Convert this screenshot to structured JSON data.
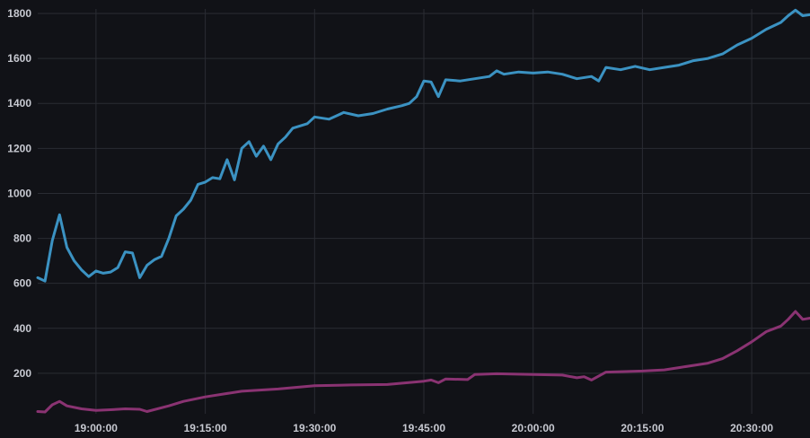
{
  "chart_data": {
    "type": "line",
    "x_start": "18:52:00",
    "x_end": "20:38:00",
    "xticks": [
      "19:00:00",
      "19:15:00",
      "19:30:00",
      "19:45:00",
      "20:00:00",
      "20:15:00",
      "20:30:00"
    ],
    "yticks": [
      200,
      400,
      600,
      800,
      1000,
      1200,
      1400,
      1600,
      1800
    ],
    "ylim": [
      20,
      1820
    ],
    "grid": true,
    "series": [
      {
        "color": "#3b92c2",
        "x": [
          "18:52:00",
          "18:53:00",
          "18:54:00",
          "18:55:00",
          "18:56:00",
          "18:57:00",
          "18:58:00",
          "18:59:00",
          "19:00:00",
          "19:01:00",
          "19:02:00",
          "19:03:00",
          "19:04:00",
          "19:05:00",
          "19:06:00",
          "19:07:00",
          "19:08:00",
          "19:09:00",
          "19:10:00",
          "19:11:00",
          "19:12:00",
          "19:13:00",
          "19:14:00",
          "19:15:00",
          "19:16:00",
          "19:17:00",
          "19:18:00",
          "19:19:00",
          "19:20:00",
          "19:21:00",
          "19:22:00",
          "19:23:00",
          "19:24:00",
          "19:25:00",
          "19:26:00",
          "19:27:00",
          "19:28:00",
          "19:29:00",
          "19:30:00",
          "19:32:00",
          "19:34:00",
          "19:36:00",
          "19:38:00",
          "19:40:00",
          "19:42:00",
          "19:43:00",
          "19:44:00",
          "19:45:00",
          "19:46:00",
          "19:47:00",
          "19:48:00",
          "19:50:00",
          "19:52:00",
          "19:54:00",
          "19:55:00",
          "19:56:00",
          "19:58:00",
          "20:00:00",
          "20:02:00",
          "20:04:00",
          "20:06:00",
          "20:08:00",
          "20:09:00",
          "20:10:00",
          "20:12:00",
          "20:14:00",
          "20:16:00",
          "20:18:00",
          "20:20:00",
          "20:22:00",
          "20:24:00",
          "20:26:00",
          "20:28:00",
          "20:30:00",
          "20:32:00",
          "20:34:00",
          "20:35:00",
          "20:36:00",
          "20:37:00",
          "20:38:00"
        ],
        "values": [
          625,
          610,
          790,
          905,
          760,
          700,
          660,
          630,
          655,
          645,
          650,
          670,
          740,
          735,
          625,
          680,
          705,
          720,
          800,
          900,
          930,
          970,
          1040,
          1050,
          1070,
          1065,
          1150,
          1060,
          1200,
          1230,
          1165,
          1210,
          1150,
          1220,
          1250,
          1290,
          1300,
          1310,
          1340,
          1330,
          1360,
          1345,
          1355,
          1375,
          1390,
          1400,
          1430,
          1500,
          1495,
          1430,
          1505,
          1500,
          1510,
          1520,
          1545,
          1530,
          1540,
          1535,
          1540,
          1530,
          1510,
          1520,
          1500,
          1560,
          1550,
          1565,
          1550,
          1560,
          1570,
          1590,
          1600,
          1620,
          1660,
          1690,
          1730,
          1760,
          1790,
          1815,
          1790,
          1795
        ]
      },
      {
        "color": "#8a3372",
        "x": [
          "18:52:00",
          "18:53:00",
          "18:54:00",
          "18:55:00",
          "18:56:00",
          "18:58:00",
          "19:00:00",
          "19:02:00",
          "19:04:00",
          "19:06:00",
          "19:07:00",
          "19:10:00",
          "19:12:00",
          "19:15:00",
          "19:18:00",
          "19:20:00",
          "19:25:00",
          "19:30:00",
          "19:35:00",
          "19:40:00",
          "19:45:00",
          "19:46:00",
          "19:47:00",
          "19:48:00",
          "19:51:00",
          "19:52:00",
          "19:55:00",
          "20:00:00",
          "20:04:00",
          "20:06:00",
          "20:07:00",
          "20:08:00",
          "20:10:00",
          "20:15:00",
          "20:18:00",
          "20:20:00",
          "20:22:00",
          "20:24:00",
          "20:26:00",
          "20:28:00",
          "20:30:00",
          "20:32:00",
          "20:34:00",
          "20:35:00",
          "20:36:00",
          "20:37:00",
          "20:38:00"
        ],
        "values": [
          30,
          28,
          60,
          75,
          55,
          42,
          35,
          38,
          42,
          40,
          30,
          55,
          75,
          95,
          110,
          120,
          130,
          145,
          148,
          150,
          165,
          170,
          158,
          175,
          172,
          195,
          198,
          195,
          192,
          180,
          185,
          170,
          205,
          210,
          215,
          225,
          235,
          245,
          265,
          300,
          340,
          385,
          410,
          440,
          475,
          440,
          445
        ]
      }
    ]
  }
}
